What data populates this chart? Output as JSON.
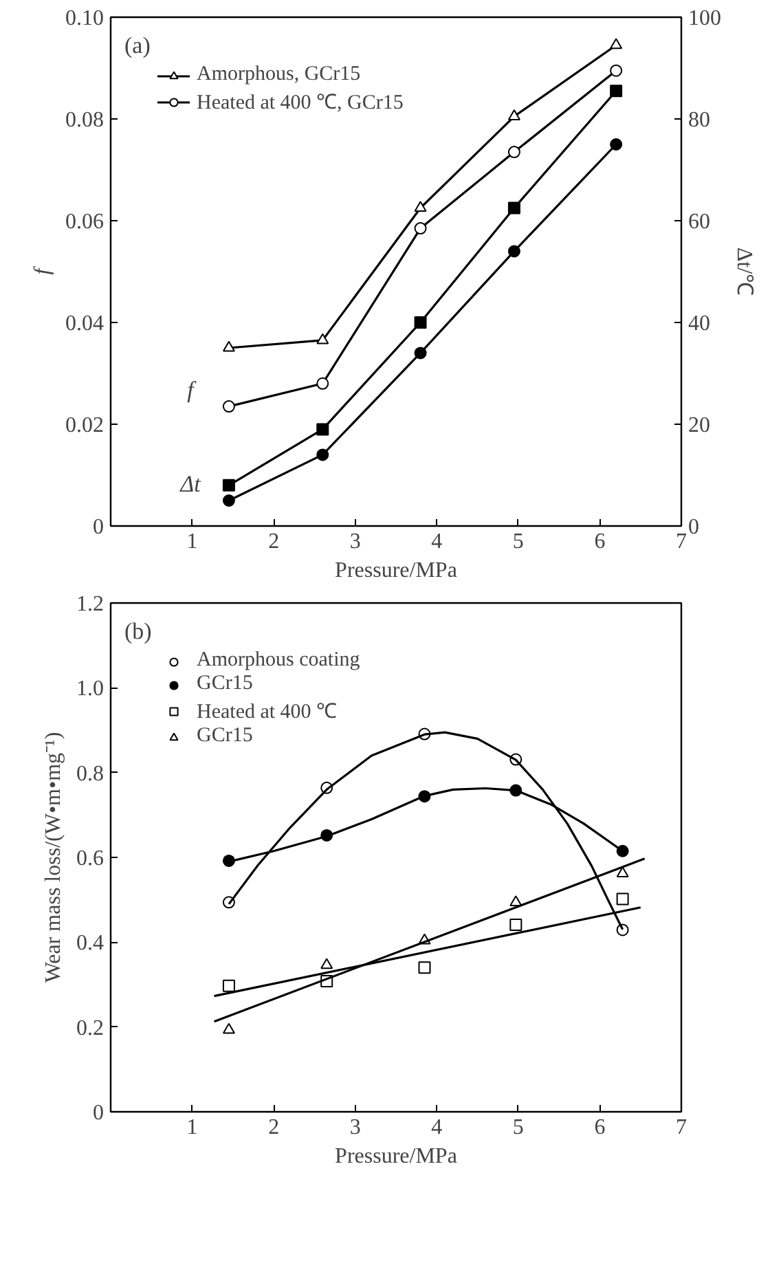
{
  "chart_data": [
    {
      "type": "line",
      "xlabel": "Pressure/MPa",
      "ylabel": "f",
      "y2label": "Δt/℃",
      "xlim": [
        0,
        7
      ],
      "xticks": [
        1,
        2,
        3,
        4,
        5,
        6,
        7
      ],
      "ylim": [
        0,
        0.1
      ],
      "yticks": [
        0,
        0.02,
        0.04,
        0.06,
        0.08,
        {
          "value": 0.1,
          "label": "0.10"
        }
      ],
      "y2lim": [
        0,
        100
      ],
      "y2ticks": [
        0,
        20,
        40,
        60,
        80,
        100
      ],
      "grid": false,
      "legend": "top left",
      "annotations": [
        "(a)",
        {
          "text": "f",
          "x": 1.45,
          "y": 0.0235
        },
        {
          "text": "Δt",
          "x": 1.45,
          "y": 0.005
        }
      ],
      "series": [
        {
          "name": "Amorphous, GCr15",
          "color": "#000000",
          "marker": "triangle",
          "x": [
            1.45,
            2.6,
            3.8,
            4.95,
            6.2
          ],
          "values": [
            0.035,
            0.0365,
            0.0625,
            0.0805,
            0.0945
          ]
        },
        {
          "color": "#000000",
          "marker": "square",
          "axis": "y2",
          "x": [
            1.45,
            2.6,
            3.8,
            4.95,
            6.2
          ],
          "values": [
            8,
            19,
            40,
            62.5,
            85.5
          ]
        },
        {
          "name": "Heated at 400 ℃, GCr15",
          "color": "#000000",
          "marker": "circle",
          "x": [
            1.45,
            2.6,
            3.8,
            4.95,
            6.2
          ],
          "values": [
            0.0235,
            0.028,
            0.0585,
            0.0735,
            0.0895
          ]
        },
        {
          "color": "#000000",
          "marker": "circle",
          "axis": "y2",
          "x": [
            1.45,
            2.6,
            3.8,
            4.95,
            6.2
          ],
          "values": [
            5,
            14,
            34,
            54,
            75
          ]
        }
      ]
    },
    {
      "type": "scatter",
      "xlabel": "Pressure/MPa",
      "ylabel": "Wear mass loss/(W•m•mg⁻¹)",
      "xlim": [
        0,
        7
      ],
      "xticks": [
        1,
        2,
        3,
        4,
        5,
        6,
        7
      ],
      "ylim": [
        0,
        1.2
      ],
      "yticks": [
        0,
        0.2,
        0.4,
        0.6,
        0.8,
        {
          "value": 1.0,
          "label": "1.0"
        },
        1.2
      ],
      "grid": false,
      "legend": "top left",
      "annotations": [
        "(b)"
      ],
      "series": [
        {
          "name": "Amorphous coating",
          "color": "#ffffff",
          "marker": "circle",
          "x": [
            1.45,
            2.65,
            3.85,
            4.97,
            6.28
          ],
          "values": [
            0.494,
            0.764,
            0.891,
            0.831,
            0.429
          ]
        },
        {
          "name": "GCr15",
          "color": "#000000",
          "marker": "circle",
          "x": [
            1.45,
            2.65,
            3.85,
            4.97,
            6.28
          ],
          "values": [
            0.592,
            0.652,
            0.744,
            0.758,
            0.615
          ]
        },
        {
          "name": "Heated at 400 ℃",
          "color": "#ffffff",
          "marker": "square",
          "x": [
            1.45,
            2.65,
            3.85,
            4.97,
            6.28
          ],
          "values": [
            0.297,
            0.308,
            0.34,
            0.441,
            0.502
          ]
        },
        {
          "name": "GCr15",
          "color": "#ffffff",
          "marker": "triangle",
          "x": [
            1.45,
            2.65,
            3.85,
            4.97,
            6.28
          ],
          "values": [
            0.193,
            0.346,
            0.404,
            0.494,
            0.562
          ]
        },
        {
          "type": "line",
          "color": "#000000",
          "marker": "none",
          "x": [
            1.45,
            1.8,
            2.2,
            2.65,
            3.2,
            3.85,
            4.1,
            4.5,
            4.97,
            5.3,
            5.6,
            5.9,
            6.1,
            6.28
          ],
          "values": [
            0.49,
            0.58,
            0.67,
            0.76,
            0.84,
            0.89,
            0.895,
            0.88,
            0.83,
            0.76,
            0.68,
            0.58,
            0.5,
            0.43
          ]
        },
        {
          "type": "line",
          "color": "#000000",
          "marker": "none",
          "x": [
            1.45,
            2.0,
            2.65,
            3.2,
            3.85,
            4.2,
            4.6,
            4.97,
            5.4,
            5.8,
            6.28
          ],
          "values": [
            0.59,
            0.615,
            0.65,
            0.69,
            0.745,
            0.76,
            0.763,
            0.758,
            0.725,
            0.68,
            0.615
          ]
        },
        {
          "type": "line",
          "color": "#000000",
          "marker": "none",
          "x": [
            1.27,
            6.5
          ],
          "values": [
            0.273,
            0.482
          ]
        },
        {
          "type": "line",
          "color": "#000000",
          "marker": "none",
          "x": [
            1.27,
            6.55
          ],
          "values": [
            0.213,
            0.597
          ]
        }
      ]
    }
  ]
}
